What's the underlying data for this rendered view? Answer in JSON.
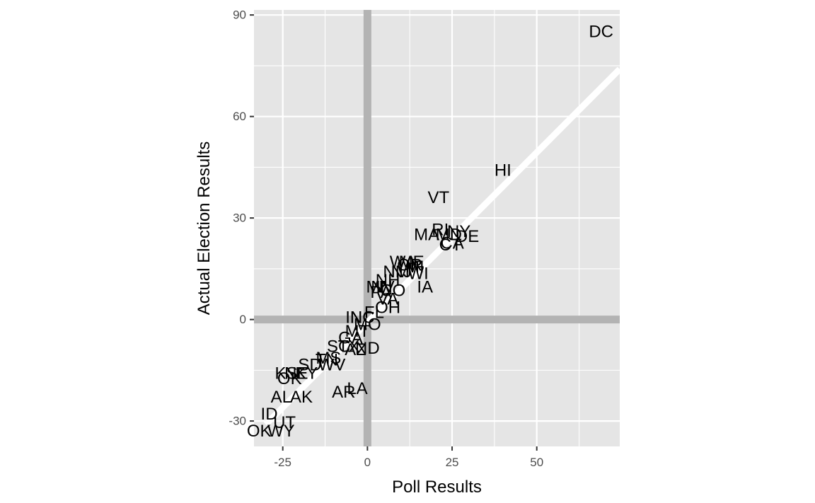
{
  "chart_data": {
    "type": "scatter",
    "mark": "text",
    "xlabel": "Poll Results",
    "ylabel": "Actual Election Results",
    "xlim": [
      -33.5,
      74.5
    ],
    "ylim": [
      -37.5,
      91.5
    ],
    "x_ticks": [
      -25,
      0,
      25,
      50
    ],
    "y_ticks": [
      -30,
      0,
      30,
      60,
      90
    ],
    "x_tick_labels": [
      "-25",
      "0",
      "25",
      "50"
    ],
    "y_tick_labels": [
      "-30",
      "0",
      "30",
      "60",
      "90"
    ],
    "grid": true,
    "legend": "none",
    "panel_background": "#e5e5e5",
    "gridline_color": "#ffffff",
    "reference_lines": {
      "x": 0,
      "y": 0,
      "color": "#b3b3b3"
    },
    "fit_line": {
      "x": [
        -30,
        74.5
      ],
      "y": [
        -31,
        74
      ],
      "color": "#ffffff"
    },
    "points": [
      {
        "label": "DC",
        "x": 69,
        "y": 85
      },
      {
        "label": "HI",
        "x": 40,
        "y": 44
      },
      {
        "label": "VT",
        "x": 21,
        "y": 36
      },
      {
        "label": "RI",
        "x": 21.5,
        "y": 26.5
      },
      {
        "label": "NY",
        "x": 27,
        "y": 26
      },
      {
        "label": "MA",
        "x": 17.5,
        "y": 25
      },
      {
        "label": "MD",
        "x": 24,
        "y": 25
      },
      {
        "label": "DE",
        "x": 29.5,
        "y": 24.5
      },
      {
        "label": "CA",
        "x": 25,
        "y": 22.5
      },
      {
        "label": "CT",
        "x": 24.5,
        "y": 22
      },
      {
        "label": "WA",
        "x": 10.5,
        "y": 17
      },
      {
        "label": "ME",
        "x": 13,
        "y": 17
      },
      {
        "label": "OR",
        "x": 12.5,
        "y": 16
      },
      {
        "label": "MI",
        "x": 14,
        "y": 15.5
      },
      {
        "label": "NM",
        "x": 8.5,
        "y": 14
      },
      {
        "label": "NJ",
        "x": 10,
        "y": 14
      },
      {
        "label": "WI",
        "x": 15,
        "y": 13.5
      },
      {
        "label": "NH",
        "x": 6,
        "y": 11.5
      },
      {
        "label": "IA",
        "x": 17,
        "y": 9.5
      },
      {
        "label": "MN",
        "x": 3.5,
        "y": 9.5
      },
      {
        "label": "NV",
        "x": 4.5,
        "y": 9.5
      },
      {
        "label": "CO",
        "x": 7.5,
        "y": 8.5
      },
      {
        "label": "PA",
        "x": 4,
        "y": 8
      },
      {
        "label": "VA",
        "x": 6,
        "y": 6
      },
      {
        "label": "OH",
        "x": 6,
        "y": 3.5
      },
      {
        "label": "FL",
        "x": 2,
        "y": 2
      },
      {
        "label": "IN",
        "x": -4,
        "y": 0.5
      },
      {
        "label": "NC",
        "x": -1.5,
        "y": 0.5
      },
      {
        "label": "MO",
        "x": 0,
        "y": -1.5
      },
      {
        "label": "MT",
        "x": -3,
        "y": -3.5
      },
      {
        "label": "GA",
        "x": -5,
        "y": -5.5
      },
      {
        "label": "SC",
        "x": -8.5,
        "y": -8
      },
      {
        "label": "TX",
        "x": -5.5,
        "y": -8
      },
      {
        "label": "ND",
        "x": 0,
        "y": -8.5
      },
      {
        "label": "AZ",
        "x": -3.5,
        "y": -9
      },
      {
        "label": "MS",
        "x": -11.5,
        "y": -11.5
      },
      {
        "label": "TN",
        "x": -12,
        "y": -12
      },
      {
        "label": "WV",
        "x": -10.5,
        "y": -13.5
      },
      {
        "label": "SD",
        "x": -17,
        "y": -13.5
      },
      {
        "label": "KS",
        "x": -24,
        "y": -16
      },
      {
        "label": "NE",
        "x": -21,
        "y": -16
      },
      {
        "label": "KY",
        "x": -18,
        "y": -16
      },
      {
        "label": "OK",
        "x": -23,
        "y": -17.5
      },
      {
        "label": "AR",
        "x": -7,
        "y": -21.5
      },
      {
        "label": "LA",
        "x": -3,
        "y": -20.5
      },
      {
        "label": "AL",
        "x": -25.5,
        "y": -23
      },
      {
        "label": "AK",
        "x": -19.5,
        "y": -23
      },
      {
        "label": "ID",
        "x": -29,
        "y": -28
      },
      {
        "label": "UT",
        "x": -24.5,
        "y": -30.5
      },
      {
        "label": "OK",
        "x": -32,
        "y": -33
      },
      {
        "label": "WY",
        "x": -25.5,
        "y": -33
      }
    ]
  }
}
